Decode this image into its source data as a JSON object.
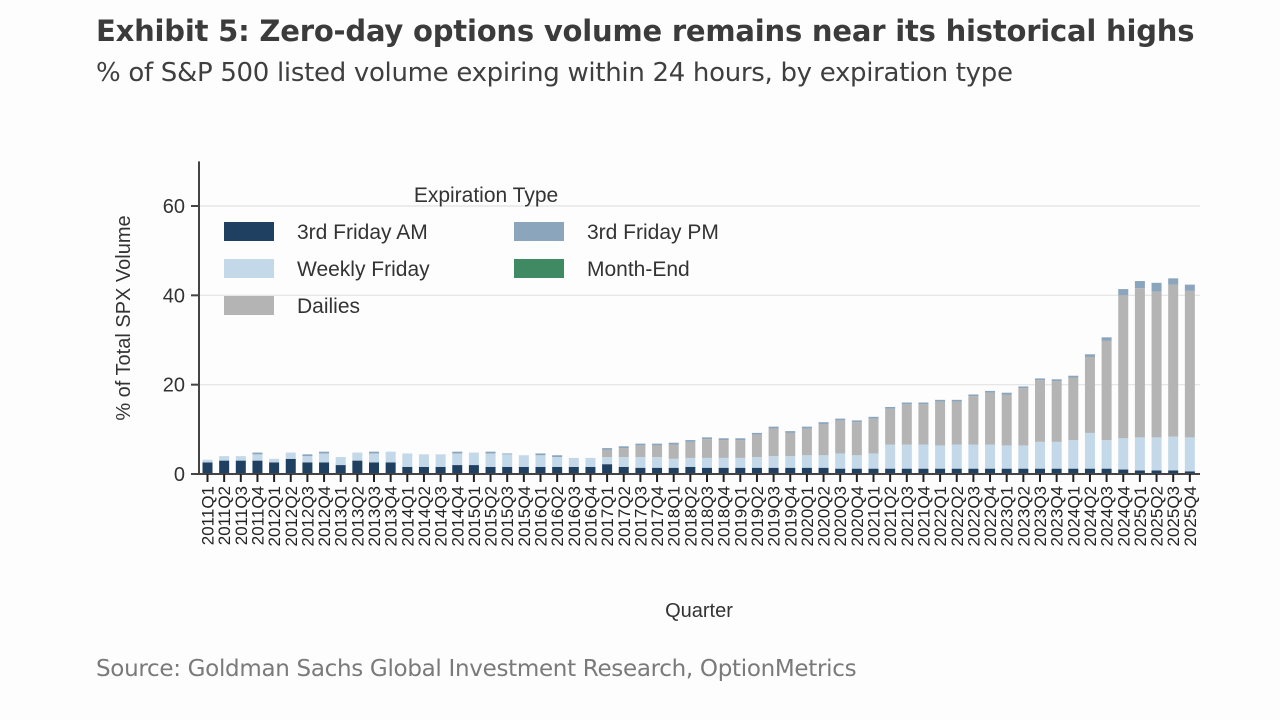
{
  "header": {
    "title": "Exhibit 5: Zero-day options volume remains near its historical highs",
    "subtitle": "% of S&P 500 listed volume expiring within 24 hours, by expiration type"
  },
  "footer": {
    "source": "Source: Goldman Sachs Global Investment Research, OptionMetrics"
  },
  "chart_data": {
    "type": "bar",
    "stacked": true,
    "title": "Exhibit 5: Zero-day options volume remains near its historical highs",
    "subtitle": "% of S&P 500 listed volume expiring within 24 hours, by expiration type",
    "xlabel": "Quarter",
    "ylabel": "% of Total SPX Volume",
    "ylim": [
      0,
      70
    ],
    "yticks": [
      0,
      20,
      40,
      60
    ],
    "grid": true,
    "legend": {
      "title": "Expiration Type",
      "placement": "top-left",
      "entries": [
        "3rd Friday AM",
        "3rd Friday PM",
        "Weekly Friday",
        "Month-End",
        "Dailies"
      ]
    },
    "colors": {
      "3rd Friday AM": "#1f4060",
      "3rd Friday PM": "#8aa5bc",
      "Weekly Friday": "#c3d8e8",
      "Month-End": "#3f8a63",
      "Dailies": "#b4b4b4"
    },
    "categories": [
      "2011Q1",
      "2011Q2",
      "2011Q3",
      "2011Q4",
      "2012Q1",
      "2012Q2",
      "2012Q3",
      "2012Q4",
      "2013Q1",
      "2013Q2",
      "2013Q3",
      "2013Q4",
      "2014Q1",
      "2014Q2",
      "2014Q3",
      "2014Q4",
      "2015Q1",
      "2015Q2",
      "2015Q3",
      "2015Q4",
      "2016Q1",
      "2016Q2",
      "2016Q3",
      "2016Q4",
      "2017Q1",
      "2017Q2",
      "2017Q3",
      "2017Q4",
      "2018Q1",
      "2018Q2",
      "2018Q3",
      "2018Q4",
      "2019Q1",
      "2019Q2",
      "2019Q3",
      "2019Q4",
      "2020Q1",
      "2020Q2",
      "2020Q3",
      "2020Q4",
      "2021Q1",
      "2021Q2",
      "2021Q3",
      "2021Q4",
      "2022Q1",
      "2022Q2",
      "2022Q3",
      "2022Q4",
      "2023Q1",
      "2023Q2",
      "2023Q3",
      "2023Q4",
      "2024Q1",
      "2024Q2",
      "2024Q3",
      "2024Q4",
      "2025Q1",
      "2025Q2",
      "2025Q3",
      "2025Q4"
    ],
    "series": [
      {
        "name": "3rd Friday AM",
        "values": [
          2.6,
          3.0,
          3.0,
          3.0,
          2.6,
          3.4,
          2.6,
          2.6,
          2.0,
          3.0,
          2.6,
          2.6,
          1.6,
          1.6,
          1.6,
          2.0,
          2.0,
          1.6,
          1.6,
          1.6,
          1.6,
          1.6,
          1.6,
          1.6,
          2.2,
          1.6,
          1.4,
          1.4,
          1.4,
          1.6,
          1.4,
          1.4,
          1.4,
          1.4,
          1.4,
          1.4,
          1.4,
          1.4,
          1.2,
          1.2,
          1.2,
          1.2,
          1.2,
          1.2,
          1.2,
          1.2,
          1.2,
          1.2,
          1.2,
          1.2,
          1.2,
          1.2,
          1.2,
          1.2,
          1.2,
          1.0,
          0.8,
          0.8,
          0.8,
          0.6
        ]
      },
      {
        "name": "Weekly Friday",
        "values": [
          0.6,
          1.0,
          1.0,
          1.4,
          0.8,
          1.4,
          1.4,
          2.0,
          1.8,
          1.8,
          2.0,
          2.4,
          3.0,
          2.8,
          2.8,
          2.6,
          2.8,
          3.0,
          2.8,
          2.6,
          2.6,
          2.2,
          2.0,
          2.0,
          1.6,
          2.2,
          2.4,
          2.4,
          2.0,
          2.0,
          2.2,
          2.2,
          2.2,
          2.4,
          2.6,
          2.6,
          2.8,
          2.8,
          3.4,
          3.0,
          3.4,
          5.4,
          5.4,
          5.4,
          5.2,
          5.4,
          5.4,
          5.4,
          5.2,
          5.2,
          6.0,
          6.0,
          6.4,
          8.0,
          6.4,
          7.0,
          7.4,
          7.4,
          7.6,
          7.6
        ]
      },
      {
        "name": "Dailies",
        "values": [
          0,
          0,
          0,
          0,
          0,
          0,
          0,
          0,
          0,
          0,
          0,
          0,
          0,
          0,
          0,
          0,
          0,
          0,
          0,
          0,
          0,
          0,
          0,
          0,
          1.6,
          2.0,
          2.6,
          2.6,
          3.2,
          3.6,
          4.2,
          4.0,
          4.0,
          5.0,
          6.2,
          5.2,
          6.0,
          7.0,
          7.4,
          7.4,
          7.8,
          8.0,
          9.0,
          9.0,
          9.8,
          9.6,
          10.8,
          11.6,
          11.4,
          12.8,
          13.8,
          13.6,
          14.0,
          17.0,
          22.2,
          32.0,
          33.4,
          32.6,
          34.0,
          32.8
        ]
      },
      {
        "name": "3rd Friday PM",
        "values": [
          0,
          0,
          0,
          0.4,
          0,
          0,
          0.4,
          0.4,
          0,
          0,
          0.4,
          0,
          0,
          0,
          0,
          0.4,
          0,
          0.4,
          0.2,
          0,
          0.4,
          0.4,
          0,
          0,
          0.4,
          0.4,
          0.4,
          0.4,
          0.4,
          0.4,
          0.4,
          0.4,
          0.4,
          0.4,
          0.4,
          0.4,
          0.4,
          0.4,
          0.4,
          0.4,
          0.4,
          0.4,
          0.4,
          0.4,
          0.4,
          0.4,
          0.4,
          0.4,
          0.4,
          0.4,
          0.4,
          0.4,
          0.4,
          0.6,
          0.8,
          1.4,
          1.6,
          2.0,
          1.4,
          1.4
        ]
      },
      {
        "name": "Month-End",
        "values": [
          0,
          0,
          0,
          0,
          0,
          0,
          0,
          0,
          0,
          0,
          0,
          0,
          0,
          0,
          0,
          0,
          0,
          0,
          0,
          0,
          0,
          0,
          0,
          0,
          0,
          0,
          0,
          0,
          0,
          0,
          0,
          0,
          0,
          0,
          0,
          0,
          0,
          0,
          0,
          0,
          0,
          0,
          0,
          0,
          0,
          0,
          0,
          0,
          0,
          0,
          0,
          0,
          0,
          0,
          0,
          0,
          0,
          0,
          0,
          0
        ]
      }
    ]
  }
}
